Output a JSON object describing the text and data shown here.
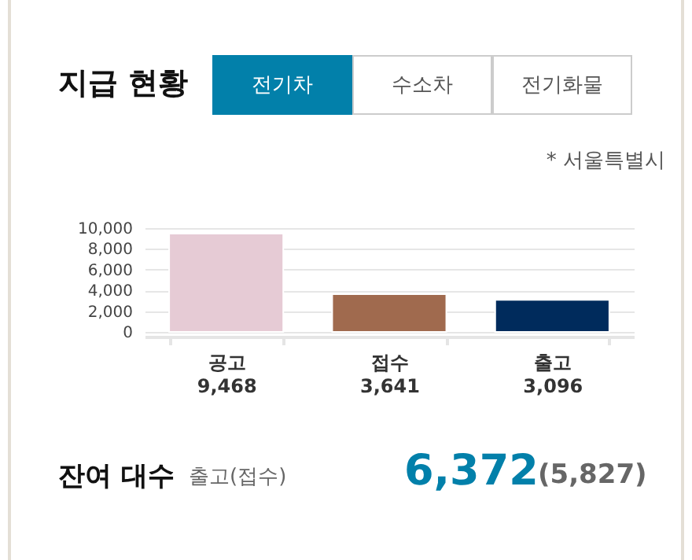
{
  "chart_data": {
    "type": "bar",
    "title": "지급 현황",
    "subtitle": "* 서울특별시",
    "categories": [
      "공고",
      "접수",
      "출고"
    ],
    "values": [
      9468,
      3641,
      3096
    ],
    "value_labels": [
      "9,468",
      "3,641",
      "3,096"
    ],
    "colors": [
      "#e6cbd5",
      "#a06a4e",
      "#002b5c"
    ],
    "ylim": [
      0,
      10000
    ],
    "yticks": [
      0,
      {
        "value": 2000,
        "label": "2,000"
      },
      {
        "value": 4000,
        "label": "4,000"
      },
      {
        "value": 6000,
        "label": "6,000"
      },
      {
        "value": 8000,
        "label": "8,000"
      },
      {
        "value": 10000,
        "label": "10,000"
      }
    ],
    "grid": "y",
    "annotations": [
      "전기차",
      "수소차",
      "전기화물",
      "잔여 대수",
      "출고(접수)",
      "6,372",
      "(5,827)"
    ]
  }
}
